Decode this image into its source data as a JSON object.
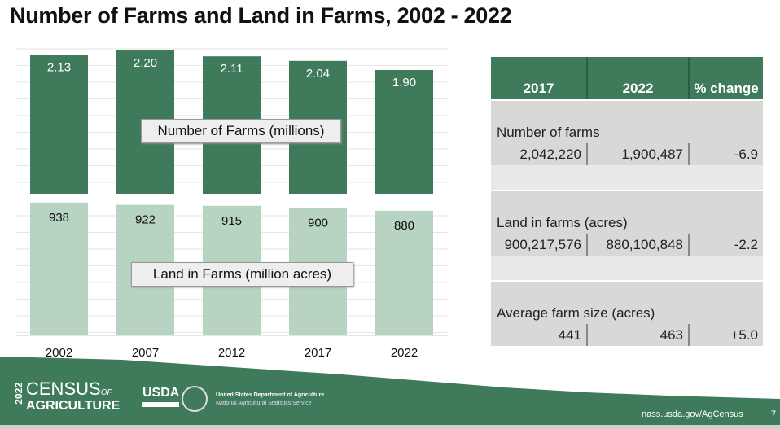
{
  "title": "Number of Farms and Land in Farms, 2002 - 2022",
  "chart_data": [
    {
      "type": "bar",
      "categories": [
        "2002",
        "2007",
        "2012",
        "2017",
        "2022"
      ],
      "values": [
        2.13,
        2.2,
        2.11,
        2.04,
        1.9
      ],
      "label": "Number of Farms (millions)",
      "data_labels": [
        "2.13",
        "2.20",
        "2.11",
        "2.04",
        "1.90"
      ],
      "color": "#3f7a5b"
    },
    {
      "type": "bar",
      "categories": [
        "2002",
        "2007",
        "2012",
        "2017",
        "2022"
      ],
      "values": [
        938,
        922,
        915,
        900,
        880
      ],
      "label": "Land in Farms (million acres)",
      "data_labels": [
        "938",
        "922",
        "915",
        "900",
        "880"
      ],
      "color": "#b7d3c2"
    }
  ],
  "table": {
    "headers": [
      "2017",
      "2022",
      "% change"
    ],
    "rows": [
      {
        "label": "Number of farms",
        "values": [
          "2,042,220",
          "1,900,487",
          "-6.9"
        ]
      },
      {
        "label": "Land in farms (acres)",
        "values": [
          "900,217,576",
          "880,100,848",
          "-2.2"
        ]
      },
      {
        "label": "Average farm size (acres)",
        "values": [
          "441",
          "463",
          "+5.0"
        ]
      }
    ]
  },
  "footer": {
    "census_year": "2022",
    "census_line1": "CENSUS",
    "census_of": "OF",
    "census_line2": "AGRICULTURE",
    "usda": "USDA",
    "dept": "United States Department of Agriculture",
    "service": "National Agricultural Statistics Service",
    "url": "nass.usda.gov/AgCensus",
    "page": "7",
    "color": "#3f7a5b"
  }
}
